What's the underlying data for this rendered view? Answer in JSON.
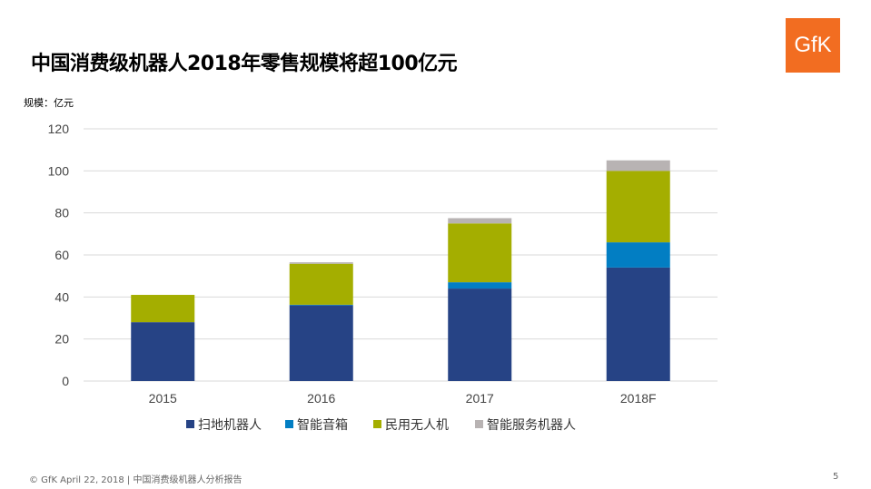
{
  "title": "中国消费级机器人2018年零售规模将超100亿元",
  "unit_label": "规模：亿元",
  "logo_text": "GfK",
  "footer": "© GfK April 22, 2018 | 中国消费级机器人分析报告",
  "page_number": "5",
  "chart_data": {
    "type": "bar",
    "stacked": true,
    "categories": [
      "2015",
      "2016",
      "2017",
      "2018F"
    ],
    "series": [
      {
        "name": "扫地机器人",
        "color": "#264385",
        "values": [
          28,
          36,
          44,
          54
        ]
      },
      {
        "name": "智能音箱",
        "color": "#027ec3",
        "values": [
          0,
          0.3,
          3,
          12
        ]
      },
      {
        "name": "民用无人机",
        "color": "#a4ae00",
        "values": [
          13,
          19.5,
          28,
          34
        ]
      },
      {
        "name": "智能服务机器人",
        "color": "#b8b3b3",
        "values": [
          0,
          0.7,
          2.5,
          5
        ]
      }
    ],
    "ylim": [
      0,
      120
    ],
    "yticks": [
      0,
      20,
      40,
      60,
      80,
      100,
      120
    ],
    "grid": true,
    "legend": "bottom"
  }
}
